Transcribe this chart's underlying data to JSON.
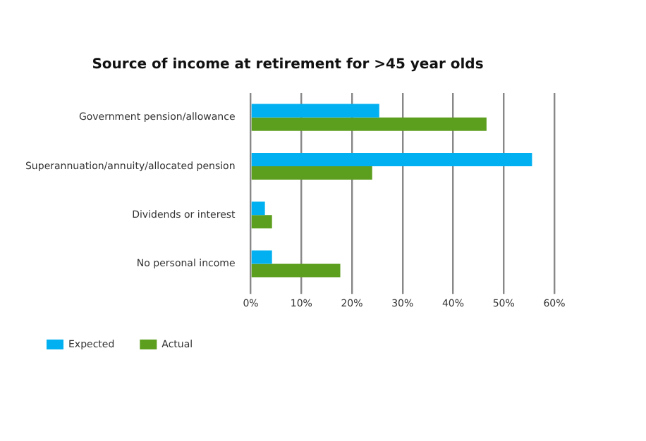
{
  "chart_data": {
    "type": "bar",
    "orientation": "horizontal",
    "title": "Source of income at retirement for >45 year olds",
    "categories": [
      "Government pension/allowance",
      "Superannuation/annuity/allocated pension",
      "Dividends or interest",
      "No personal income"
    ],
    "series": [
      {
        "name": "Expected",
        "color": "#00b0f0",
        "values": [
          25.4,
          55.6,
          2.8,
          4.2
        ]
      },
      {
        "name": "Actual",
        "color": "#5c9e1e",
        "values": [
          46.6,
          24,
          4.2,
          17.7
        ]
      }
    ],
    "xlim": [
      0,
      60
    ],
    "xticks": [
      {
        "value": 0,
        "label": "0%"
      },
      {
        "value": 10,
        "label": "10%"
      },
      {
        "value": 20,
        "label": "20%"
      },
      {
        "value": 30,
        "label": "30%"
      },
      {
        "value": 40,
        "label": "40%"
      },
      {
        "value": 50,
        "label": "50%"
      },
      {
        "value": 60,
        "label": "60%"
      }
    ],
    "grid": "x",
    "legend": "bottom"
  }
}
